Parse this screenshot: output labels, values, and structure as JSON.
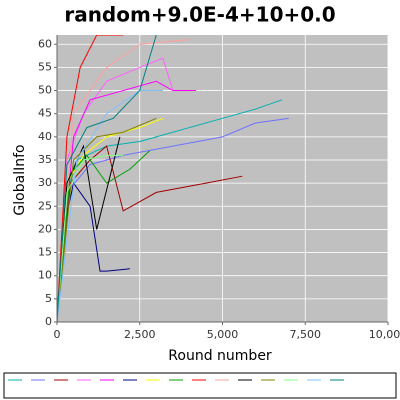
{
  "chart_data": {
    "type": "line",
    "title": "random+9.0E-4+10+0.0",
    "x_label": "Round number",
    "y_label": "GlobalInfo",
    "xlim": [
      0,
      10000
    ],
    "ylim": [
      0,
      62
    ],
    "xticks": [
      0,
      {
        "value": 2500,
        "label": "2,500"
      },
      {
        "value": 5000,
        "label": "5,000"
      },
      {
        "value": 7500,
        "label": "7,500"
      },
      {
        "value": 10000,
        "label": "10,000"
      }
    ],
    "yticks": [
      0,
      5,
      10,
      15,
      20,
      25,
      30,
      35,
      40,
      45,
      50,
      55,
      60
    ],
    "grid": true,
    "legend": "bottom",
    "series": [
      {
        "color": "#00b0b0",
        "x": [
          0,
          200,
          600,
          1500,
          2500,
          3000,
          4000,
          5000,
          6000,
          6800
        ],
        "values": [
          0,
          25,
          35,
          38,
          39,
          40,
          42,
          44,
          46,
          48
        ]
      },
      {
        "color": "#7070ff",
        "x": [
          0,
          300,
          1000,
          2000,
          3500,
          5000,
          6000,
          7000
        ],
        "values": [
          0,
          28,
          34,
          36,
          38,
          40,
          43,
          44
        ]
      },
      {
        "color": "#a00000",
        "x": [
          0,
          400,
          1000,
          1500,
          2000,
          3000,
          4500,
          5600
        ],
        "values": [
          0,
          30,
          35,
          38,
          24,
          28,
          30,
          31.5
        ]
      },
      {
        "color": "#ff60ff",
        "x": [
          0,
          300,
          800,
          1500,
          2500,
          3200,
          3500
        ],
        "values": [
          0,
          35,
          45,
          52,
          55,
          57,
          50
        ]
      },
      {
        "color": "#ff00ff",
        "x": [
          0,
          500,
          1000,
          2000,
          3000,
          3500,
          4200
        ],
        "values": [
          0,
          40,
          48,
          50,
          52,
          50,
          50
        ]
      },
      {
        "color": "#000080",
        "x": [
          0,
          200,
          500,
          1000,
          1300,
          1500,
          2200
        ],
        "values": [
          0,
          20,
          30,
          25,
          11,
          11,
          11.5
        ]
      },
      {
        "color": "#ffff00",
        "x": [
          0,
          300,
          800,
          1500,
          2500,
          3200
        ],
        "values": [
          0,
          30,
          36,
          40,
          42,
          44
        ]
      },
      {
        "color": "#00a000",
        "x": [
          0,
          400,
          900,
          1500,
          2200,
          2800
        ],
        "values": [
          0,
          32,
          36,
          30,
          33,
          37
        ]
      },
      {
        "color": "#ff0000",
        "x": [
          0,
          300,
          700,
          1200,
          2000
        ],
        "values": [
          0,
          40,
          55,
          62,
          62
        ]
      },
      {
        "color": "#ffa0a0",
        "x": [
          0,
          500,
          1500,
          2500,
          4000
        ],
        "values": [
          0,
          45,
          55,
          60,
          61
        ]
      },
      {
        "color": "#000000",
        "x": [
          0,
          300,
          800,
          1200,
          1900
        ],
        "values": [
          0,
          30,
          38,
          20,
          40
        ]
      },
      {
        "color": "#808000",
        "x": [
          0,
          500,
          1200,
          2000,
          3000
        ],
        "values": [
          0,
          35,
          40,
          41,
          44
        ]
      },
      {
        "color": "#80ff80",
        "x": [
          0,
          300,
          800,
          1500,
          2000
        ],
        "values": [
          0,
          28,
          35,
          36,
          36
        ]
      },
      {
        "color": "#80c0ff",
        "x": [
          0,
          600,
          1500,
          2500,
          3200
        ],
        "values": [
          0,
          35,
          45,
          50,
          50
        ]
      },
      {
        "color": "#008080",
        "x": [
          0,
          300,
          900,
          1700,
          2500,
          3000
        ],
        "values": [
          0,
          34,
          42,
          44,
          50,
          62
        ]
      }
    ]
  }
}
